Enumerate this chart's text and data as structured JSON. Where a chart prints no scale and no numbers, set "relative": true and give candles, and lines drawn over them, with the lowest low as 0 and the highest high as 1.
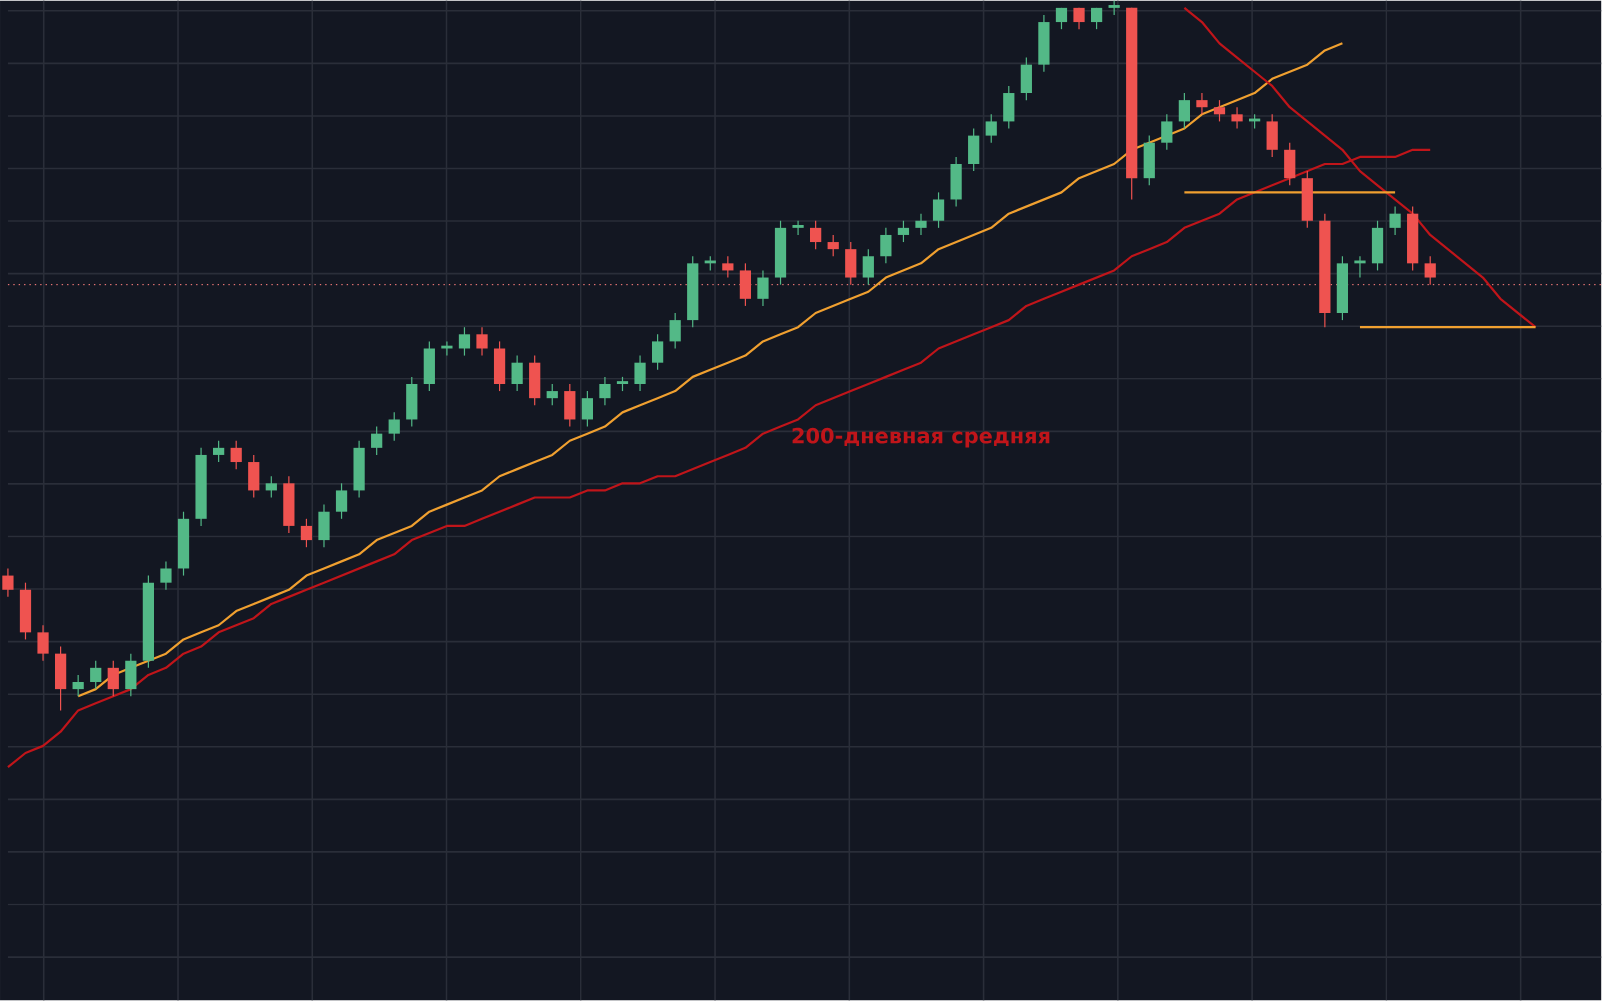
{
  "chart_data": {
    "type": "candlestick",
    "relative": true,
    "grid": true,
    "categories": [
      null,
      null,
      null,
      null,
      null,
      null,
      null,
      null,
      null,
      null,
      null,
      null,
      null,
      null,
      null,
      null,
      null,
      null,
      null,
      null,
      null,
      null,
      null,
      null,
      null,
      null,
      null,
      null,
      null,
      null,
      null,
      null,
      null,
      null,
      null,
      null,
      null,
      null,
      null,
      null,
      null,
      null,
      null,
      null,
      null,
      null,
      null,
      null,
      null,
      null,
      null,
      null,
      null,
      null,
      null,
      null,
      null,
      null,
      null,
      null,
      null,
      null,
      null,
      null,
      null,
      null,
      null,
      null,
      null,
      null,
      null,
      null,
      null,
      null,
      null,
      null,
      null,
      null,
      null,
      null,
      null,
      null,
      null,
      null,
      null,
      null,
      null,
      null
    ],
    "ohlc": [
      [
        0.19,
        0.2,
        0.16,
        0.17
      ],
      [
        0.17,
        0.18,
        0.1,
        0.11
      ],
      [
        0.11,
        0.12,
        0.07,
        0.08
      ],
      [
        0.08,
        0.09,
        0.0,
        0.03
      ],
      [
        0.03,
        0.05,
        0.02,
        0.04
      ],
      [
        0.04,
        0.07,
        0.03,
        0.06
      ],
      [
        0.06,
        0.07,
        0.02,
        0.03
      ],
      [
        0.03,
        0.08,
        0.02,
        0.07
      ],
      [
        0.07,
        0.19,
        0.06,
        0.18
      ],
      [
        0.18,
        0.21,
        0.17,
        0.2
      ],
      [
        0.2,
        0.28,
        0.19,
        0.27
      ],
      [
        0.27,
        0.37,
        0.26,
        0.36
      ],
      [
        0.36,
        0.38,
        0.35,
        0.37
      ],
      [
        0.37,
        0.38,
        0.34,
        0.35
      ],
      [
        0.35,
        0.36,
        0.3,
        0.31
      ],
      [
        0.31,
        0.33,
        0.3,
        0.32
      ],
      [
        0.32,
        0.33,
        0.25,
        0.26
      ],
      [
        0.26,
        0.27,
        0.23,
        0.24
      ],
      [
        0.24,
        0.29,
        0.23,
        0.28
      ],
      [
        0.28,
        0.32,
        0.27,
        0.31
      ],
      [
        0.31,
        0.38,
        0.3,
        0.37
      ],
      [
        0.37,
        0.4,
        0.36,
        0.39
      ],
      [
        0.39,
        0.42,
        0.38,
        0.41
      ],
      [
        0.41,
        0.47,
        0.4,
        0.46
      ],
      [
        0.46,
        0.52,
        0.45,
        0.51
      ],
      [
        0.51,
        0.52,
        0.5,
        0.51
      ],
      [
        0.51,
        0.54,
        0.5,
        0.53
      ],
      [
        0.53,
        0.54,
        0.5,
        0.51
      ],
      [
        0.51,
        0.52,
        0.45,
        0.46
      ],
      [
        0.46,
        0.5,
        0.45,
        0.49
      ],
      [
        0.49,
        0.5,
        0.43,
        0.44
      ],
      [
        0.44,
        0.46,
        0.43,
        0.45
      ],
      [
        0.45,
        0.46,
        0.4,
        0.41
      ],
      [
        0.41,
        0.45,
        0.4,
        0.44
      ],
      [
        0.44,
        0.47,
        0.43,
        0.46
      ],
      [
        0.46,
        0.47,
        0.45,
        0.46
      ],
      [
        0.46,
        0.5,
        0.45,
        0.49
      ],
      [
        0.49,
        0.53,
        0.48,
        0.52
      ],
      [
        0.52,
        0.56,
        0.51,
        0.55
      ],
      [
        0.55,
        0.64,
        0.54,
        0.63
      ],
      [
        0.63,
        0.64,
        0.62,
        0.63
      ],
      [
        0.63,
        0.64,
        0.61,
        0.62
      ],
      [
        0.62,
        0.63,
        0.57,
        0.58
      ],
      [
        0.58,
        0.62,
        0.57,
        0.61
      ],
      [
        0.61,
        0.69,
        0.6,
        0.68
      ],
      [
        0.68,
        0.69,
        0.67,
        0.68
      ],
      [
        0.68,
        0.69,
        0.65,
        0.66
      ],
      [
        0.66,
        0.67,
        0.64,
        0.65
      ],
      [
        0.65,
        0.66,
        0.6,
        0.61
      ],
      [
        0.61,
        0.65,
        0.6,
        0.64
      ],
      [
        0.64,
        0.68,
        0.63,
        0.67
      ],
      [
        0.67,
        0.69,
        0.66,
        0.68
      ],
      [
        0.68,
        0.7,
        0.67,
        0.69
      ],
      [
        0.69,
        0.73,
        0.68,
        0.72
      ],
      [
        0.72,
        0.78,
        0.71,
        0.77
      ],
      [
        0.77,
        0.82,
        0.76,
        0.81
      ],
      [
        0.81,
        0.84,
        0.8,
        0.83
      ],
      [
        0.83,
        0.88,
        0.82,
        0.87
      ],
      [
        0.87,
        0.92,
        0.86,
        0.91
      ],
      [
        0.91,
        0.98,
        0.9,
        0.97
      ],
      [
        0.97,
        0.99,
        0.96,
        0.99
      ],
      [
        0.99,
        0.99,
        0.96,
        0.97
      ],
      [
        0.97,
        0.99,
        0.96,
        0.99
      ],
      [
        0.99,
        1.0,
        0.98,
        0.99
      ],
      [
        0.99,
        0.99,
        0.72,
        0.75
      ],
      [
        0.75,
        0.81,
        0.74,
        0.8
      ],
      [
        0.8,
        0.84,
        0.79,
        0.83
      ],
      [
        0.83,
        0.87,
        0.82,
        0.86
      ],
      [
        0.86,
        0.87,
        0.84,
        0.85
      ],
      [
        0.85,
        0.86,
        0.83,
        0.84
      ],
      [
        0.84,
        0.85,
        0.82,
        0.83
      ],
      [
        0.83,
        0.84,
        0.82,
        0.83
      ],
      [
        0.83,
        0.84,
        0.78,
        0.79
      ],
      [
        0.79,
        0.8,
        0.74,
        0.75
      ],
      [
        0.75,
        0.76,
        0.68,
        0.69
      ],
      [
        0.69,
        0.7,
        0.54,
        0.56
      ],
      [
        0.56,
        0.64,
        0.55,
        0.63
      ],
      [
        0.63,
        0.64,
        0.61,
        0.63
      ],
      [
        0.63,
        0.69,
        0.62,
        0.68
      ],
      [
        0.68,
        0.71,
        0.67,
        0.7
      ],
      [
        0.7,
        0.71,
        0.62,
        0.63
      ],
      [
        0.63,
        0.64,
        0.6,
        0.61
      ],
      null,
      null,
      null,
      null,
      null,
      null
    ],
    "series": [
      {
        "type": "line",
        "name": "200-дневная средняя",
        "color": "#c0151a",
        "values": [
          -0.08,
          -0.06,
          -0.05,
          -0.03,
          0.0,
          0.01,
          0.02,
          0.03,
          0.05,
          0.06,
          0.08,
          0.09,
          0.11,
          0.12,
          0.13,
          0.15,
          0.16,
          0.17,
          0.18,
          0.19,
          0.2,
          0.21,
          0.22,
          0.24,
          0.25,
          0.26,
          0.26,
          0.27,
          0.28,
          0.29,
          0.3,
          0.3,
          0.3,
          0.31,
          0.31,
          0.32,
          0.32,
          0.33,
          0.33,
          0.34,
          0.35,
          0.36,
          0.37,
          0.39,
          0.4,
          0.41,
          0.43,
          0.44,
          0.45,
          0.46,
          0.47,
          0.48,
          0.49,
          0.51,
          0.52,
          0.53,
          0.54,
          0.55,
          0.57,
          0.58,
          0.59,
          0.6,
          0.61,
          0.62,
          0.64,
          0.65,
          0.66,
          0.68,
          0.69,
          0.7,
          0.72,
          0.73,
          0.74,
          0.75,
          0.76,
          0.77,
          0.77,
          0.78,
          0.78,
          0.78,
          0.79,
          0.79,
          null,
          null,
          null,
          null,
          null,
          null
        ]
      },
      {
        "type": "line",
        "color": "#f0a030",
        "values": [
          null,
          null,
          null,
          null,
          0.02,
          0.03,
          0.05,
          0.06,
          0.07,
          0.08,
          0.1,
          0.11,
          0.12,
          0.14,
          0.15,
          0.16,
          0.17,
          0.19,
          0.2,
          0.21,
          0.22,
          0.24,
          0.25,
          0.26,
          0.28,
          0.29,
          0.3,
          0.31,
          0.33,
          0.34,
          0.35,
          0.36,
          0.38,
          0.39,
          0.4,
          0.42,
          0.43,
          0.44,
          0.45,
          0.47,
          0.48,
          0.49,
          0.5,
          0.52,
          0.53,
          0.54,
          0.56,
          0.57,
          0.58,
          0.59,
          0.61,
          0.62,
          0.63,
          0.65,
          0.66,
          0.67,
          0.68,
          0.7,
          0.71,
          0.72,
          0.73,
          0.75,
          0.76,
          0.77,
          0.79,
          0.8,
          0.81,
          0.82,
          0.84,
          0.85,
          0.86,
          0.87,
          0.89,
          0.9,
          0.91,
          0.93,
          0.94,
          null,
          null,
          null,
          null,
          null,
          null,
          null,
          null,
          null,
          null,
          null
        ]
      },
      {
        "type": "line",
        "color": "#c0151a",
        "values": [
          null,
          null,
          null,
          null,
          null,
          null,
          null,
          null,
          null,
          null,
          null,
          null,
          null,
          null,
          null,
          null,
          null,
          null,
          null,
          null,
          null,
          null,
          null,
          null,
          null,
          null,
          null,
          null,
          null,
          null,
          null,
          null,
          null,
          null,
          null,
          null,
          null,
          null,
          null,
          null,
          null,
          null,
          null,
          null,
          null,
          null,
          null,
          null,
          null,
          null,
          null,
          null,
          null,
          null,
          null,
          null,
          null,
          null,
          null,
          null,
          null,
          null,
          null,
          null,
          null,
          null,
          null,
          0.99,
          0.97,
          0.94,
          0.92,
          0.9,
          0.88,
          0.85,
          0.83,
          0.81,
          0.79,
          0.76,
          0.74,
          0.72,
          0.7,
          0.67,
          0.65,
          0.63,
          0.61,
          0.58,
          0.56,
          0.54
        ]
      },
      {
        "type": "line",
        "color": "#f0a030",
        "values": [
          null,
          null,
          null,
          null,
          null,
          null,
          null,
          null,
          null,
          null,
          null,
          null,
          null,
          null,
          null,
          null,
          null,
          null,
          null,
          null,
          null,
          null,
          null,
          null,
          null,
          null,
          null,
          null,
          null,
          null,
          null,
          null,
          null,
          null,
          null,
          null,
          null,
          null,
          null,
          null,
          null,
          null,
          null,
          null,
          null,
          null,
          null,
          null,
          null,
          null,
          null,
          null,
          null,
          null,
          null,
          null,
          null,
          null,
          null,
          null,
          null,
          null,
          null,
          null,
          null,
          null,
          null,
          0.73,
          0.73,
          0.73,
          0.73,
          0.73,
          0.73,
          0.73,
          0.73,
          0.73,
          0.73,
          0.73,
          0.73,
          0.73,
          null,
          null,
          null,
          null,
          null,
          null,
          null,
          null
        ]
      },
      {
        "type": "line",
        "color": "#f0a030",
        "values": [
          null,
          null,
          null,
          null,
          null,
          null,
          null,
          null,
          null,
          null,
          null,
          null,
          null,
          null,
          null,
          null,
          null,
          null,
          null,
          null,
          null,
          null,
          null,
          null,
          null,
          null,
          null,
          null,
          null,
          null,
          null,
          null,
          null,
          null,
          null,
          null,
          null,
          null,
          null,
          null,
          null,
          null,
          null,
          null,
          null,
          null,
          null,
          null,
          null,
          null,
          null,
          null,
          null,
          null,
          null,
          null,
          null,
          null,
          null,
          null,
          null,
          null,
          null,
          null,
          null,
          null,
          null,
          null,
          null,
          null,
          null,
          null,
          null,
          null,
          null,
          null,
          null,
          0.54,
          0.54,
          0.54,
          0.54,
          0.54,
          0.54,
          0.54,
          0.54,
          0.54,
          0.54,
          0.54
        ]
      }
    ],
    "ref_lines": [
      {
        "axis": "y",
        "value": 0.6,
        "color": "#e57373",
        "line_style": "dotted"
      }
    ]
  }
}
